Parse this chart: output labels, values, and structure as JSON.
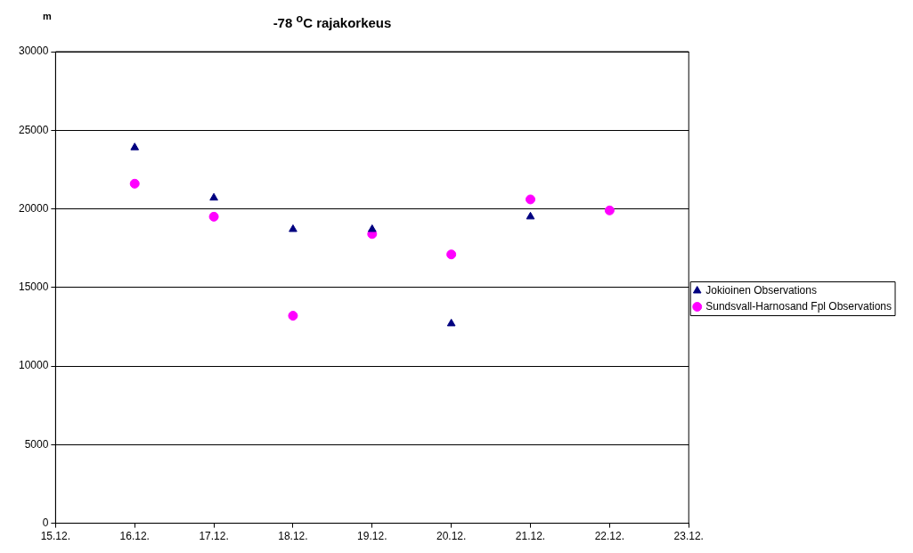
{
  "chart_data": {
    "type": "scatter",
    "title": "-78 $^{o}$C rajakorkeus",
    "ylabel": "m",
    "xlim": [
      "--12-15",
      "--12-23"
    ],
    "xticks": [
      {
        "value": "--12-15",
        "label": "15.12."
      },
      {
        "value": "--12-16",
        "label": "16.12."
      },
      {
        "value": "--12-17",
        "label": "17.12."
      },
      {
        "value": "--12-18",
        "label": "18.12."
      },
      {
        "value": "--12-19",
        "label": "19.12."
      },
      {
        "value": "--12-20",
        "label": "20.12."
      },
      {
        "value": "--12-21",
        "label": "21.12."
      },
      {
        "value": "--12-22",
        "label": "22.12."
      },
      {
        "value": "--12-23",
        "label": "23.12."
      }
    ],
    "ylim": [
      0,
      30000
    ],
    "yticks": [
      0,
      5000,
      10000,
      15000,
      20000,
      25000,
      30000
    ],
    "grid": "y",
    "legend": "right",
    "series": [
      {
        "name": "Jokioinen Observations",
        "color": "#000080",
        "marker": "triangle",
        "x": [
          "--12-16",
          "--12-17",
          "--12-18",
          "--12-19",
          "--12-20",
          "--12-21"
        ],
        "values": [
          23900,
          20700,
          18700,
          18700,
          12700,
          19500
        ]
      },
      {
        "name": "Sundsvall-Harnosand Fpl Observations",
        "color": "#ff00ff",
        "marker": "circle",
        "x": [
          "--12-16",
          "--12-17",
          "--12-18",
          "--12-19",
          "--12-20",
          "--12-21",
          "--12-22"
        ],
        "values": [
          21600,
          19500,
          13200,
          18400,
          17100,
          20600,
          19900
        ]
      }
    ]
  }
}
